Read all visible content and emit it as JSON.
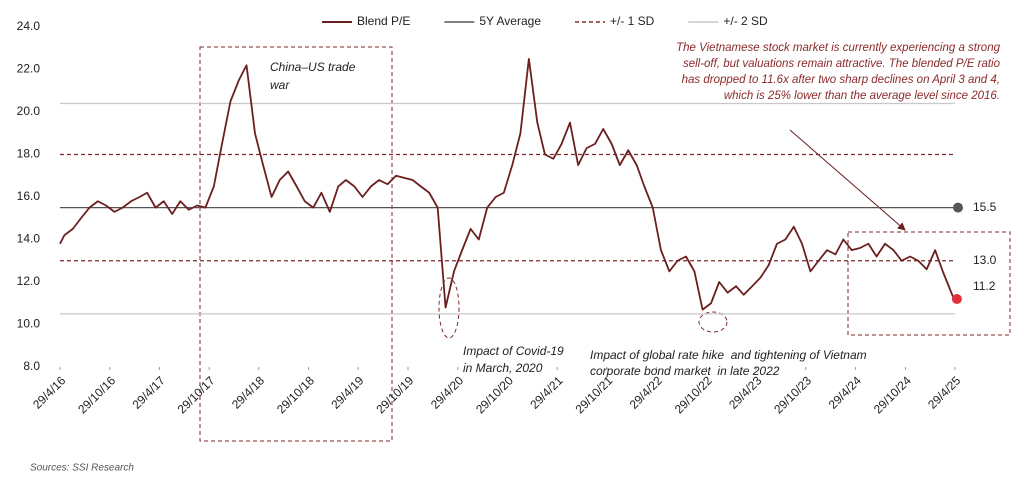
{
  "chart_data": {
    "type": "line",
    "x": [
      "2016-04-29",
      "2016-05-15",
      "2016-06-15",
      "2016-07-15",
      "2016-08-15",
      "2016-09-15",
      "2016-10-15",
      "2016-11-15",
      "2016-12-15",
      "2017-01-15",
      "2017-02-15",
      "2017-03-15",
      "2017-04-15",
      "2017-05-15",
      "2017-06-15",
      "2017-07-15",
      "2017-08-15",
      "2017-09-15",
      "2017-10-15",
      "2017-11-15",
      "2017-12-15",
      "2018-01-15",
      "2018-02-15",
      "2018-03-15",
      "2018-04-15",
      "2018-05-15",
      "2018-06-15",
      "2018-07-15",
      "2018-08-15",
      "2018-09-15",
      "2018-10-15",
      "2018-11-15",
      "2018-12-15",
      "2019-01-15",
      "2019-02-15",
      "2019-03-15",
      "2019-04-15",
      "2019-05-15",
      "2019-06-15",
      "2019-07-15",
      "2019-08-15",
      "2019-09-15",
      "2019-10-15",
      "2019-11-15",
      "2019-12-15",
      "2020-01-15",
      "2020-02-15",
      "2020-03-15",
      "2020-04-15",
      "2020-05-15",
      "2020-06-15",
      "2020-07-15",
      "2020-08-15",
      "2020-09-15",
      "2020-10-15",
      "2020-11-15",
      "2020-12-15",
      "2021-01-15",
      "2021-02-15",
      "2021-03-15",
      "2021-04-15",
      "2021-05-15",
      "2021-06-15",
      "2021-07-15",
      "2021-08-15",
      "2021-09-15",
      "2021-10-15",
      "2021-11-15",
      "2021-12-15",
      "2022-01-15",
      "2022-02-15",
      "2022-03-15",
      "2022-04-15",
      "2022-05-15",
      "2022-06-15",
      "2022-07-15",
      "2022-08-15",
      "2022-09-15",
      "2022-10-15",
      "2022-11-15",
      "2022-12-15",
      "2023-01-15",
      "2023-02-15",
      "2023-03-15",
      "2023-04-15",
      "2023-05-15",
      "2023-06-15",
      "2023-07-15",
      "2023-08-15",
      "2023-09-15",
      "2023-10-15",
      "2023-11-15",
      "2023-12-15",
      "2024-01-15",
      "2024-02-15",
      "2024-03-15",
      "2024-04-15",
      "2024-05-15",
      "2024-06-15",
      "2024-07-15",
      "2024-08-15",
      "2024-09-15",
      "2024-10-15",
      "2024-11-15",
      "2024-12-15",
      "2025-01-15",
      "2025-02-15",
      "2025-03-15",
      "2025-04-25"
    ],
    "series": [
      {
        "name": "Blend P/E",
        "color": "#6b1f1f",
        "values": [
          13.8,
          14.2,
          14.5,
          15.0,
          15.5,
          15.8,
          15.6,
          15.3,
          15.5,
          15.8,
          16.0,
          16.2,
          15.5,
          15.8,
          15.2,
          15.8,
          15.4,
          15.6,
          15.5,
          16.5,
          18.5,
          20.5,
          21.5,
          22.2,
          19.0,
          17.5,
          16.0,
          16.8,
          17.2,
          16.5,
          15.8,
          15.5,
          16.2,
          15.3,
          16.5,
          16.8,
          16.5,
          16.0,
          16.5,
          16.8,
          16.6,
          17.0,
          16.9,
          16.8,
          16.5,
          16.2,
          15.5,
          10.8,
          12.5,
          13.5,
          14.5,
          14.0,
          15.5,
          16.0,
          16.2,
          17.5,
          19.0,
          22.5,
          19.5,
          18.0,
          17.8,
          18.5,
          19.5,
          17.5,
          18.3,
          18.5,
          19.2,
          18.5,
          17.5,
          18.2,
          17.5,
          16.5,
          15.5,
          13.5,
          12.5,
          13.0,
          13.2,
          12.5,
          10.7,
          11.0,
          12.0,
          11.5,
          11.8,
          11.4,
          11.8,
          12.2,
          12.8,
          13.8,
          14.0,
          14.6,
          13.8,
          12.5,
          13.0,
          13.5,
          13.3,
          14.0,
          13.5,
          13.6,
          13.8,
          13.2,
          13.8,
          13.5,
          13.0,
          13.2,
          13.0,
          12.6,
          13.5,
          12.5,
          11.2
        ],
        "last_label": "11.2"
      }
    ],
    "reference_lines": [
      {
        "name": "5Y Average",
        "color": "#555555",
        "style": "solid",
        "values": [
          15.5
        ],
        "value_labels": [
          "15.5"
        ]
      },
      {
        "name": "+/- 1 SD",
        "color": "#7b2b2b",
        "style": "dashed",
        "values": [
          18,
          13
        ],
        "value_labels": [
          null,
          "13.0"
        ]
      },
      {
        "name": "+/- 2 SD",
        "color": "#c8c8c8",
        "style": "solid",
        "values": [
          20.4,
          10.5
        ]
      }
    ],
    "xlim": [
      "2016-04-29",
      "2025-04-29"
    ],
    "xticks": [
      {
        "value": "2016-04-29",
        "label": "29/4/16"
      },
      {
        "value": "2016-10-29",
        "label": "29/10/16"
      },
      {
        "value": "2017-04-29",
        "label": "29/4/17"
      },
      {
        "value": "2017-10-29",
        "label": "29/10/17"
      },
      {
        "value": "2018-04-29",
        "label": "29/4/18"
      },
      {
        "value": "2018-10-29",
        "label": "29/10/18"
      },
      {
        "value": "2019-04-29",
        "label": "29/4/19"
      },
      {
        "value": "2019-10-29",
        "label": "29/10/19"
      },
      {
        "value": "2020-04-29",
        "label": "29/4/20"
      },
      {
        "value": "2020-10-29",
        "label": "29/10/20"
      },
      {
        "value": "2021-04-29",
        "label": "29/4/21"
      },
      {
        "value": "2021-10-29",
        "label": "29/10/21"
      },
      {
        "value": "2022-04-29",
        "label": "29/4/22"
      },
      {
        "value": "2022-10-29",
        "label": "29/10/22"
      },
      {
        "value": "2023-04-29",
        "label": "29/4/23"
      },
      {
        "value": "2023-10-29",
        "label": "29/10/23"
      },
      {
        "value": "2024-04-29",
        "label": "29/4/24"
      },
      {
        "value": "2024-10-29",
        "label": "29/10/24"
      },
      {
        "value": "2025-04-29",
        "label": "29/4/25"
      }
    ],
    "ylim": [
      8,
      24
    ],
    "yticks": [
      {
        "value": 8,
        "label": "8.0"
      },
      {
        "value": 10,
        "label": "10.0"
      },
      {
        "value": 12,
        "label": "12.0"
      },
      {
        "value": 14,
        "label": "14.0"
      },
      {
        "value": 16,
        "label": "16.0"
      },
      {
        "value": 18,
        "label": "18.0"
      },
      {
        "value": 20,
        "label": "20.0"
      },
      {
        "value": 22,
        "label": "22.0"
      },
      {
        "value": 24,
        "label": "24.0"
      }
    ],
    "annotations": [
      {
        "lines": [
          "The Vietnamese stock market is currently experiencing a strong",
          "sell-off, but valuations remain attractive. The blended P/E ratio",
          "has dropped to 11.6x after two sharp declines on April 3 and 4,",
          "which is 25% lower than the average level since 2016."
        ]
      },
      {
        "lines": [
          "China–US trade",
          "war"
        ]
      },
      {
        "lines": [
          "Impact of Covid-19",
          "in March, 2020"
        ]
      },
      {
        "lines": [
          "Impact of global rate hike  and tightening of Vietnam",
          "corporate bond market  in late 2022"
        ]
      }
    ],
    "source": "Sources: SSI Research"
  }
}
